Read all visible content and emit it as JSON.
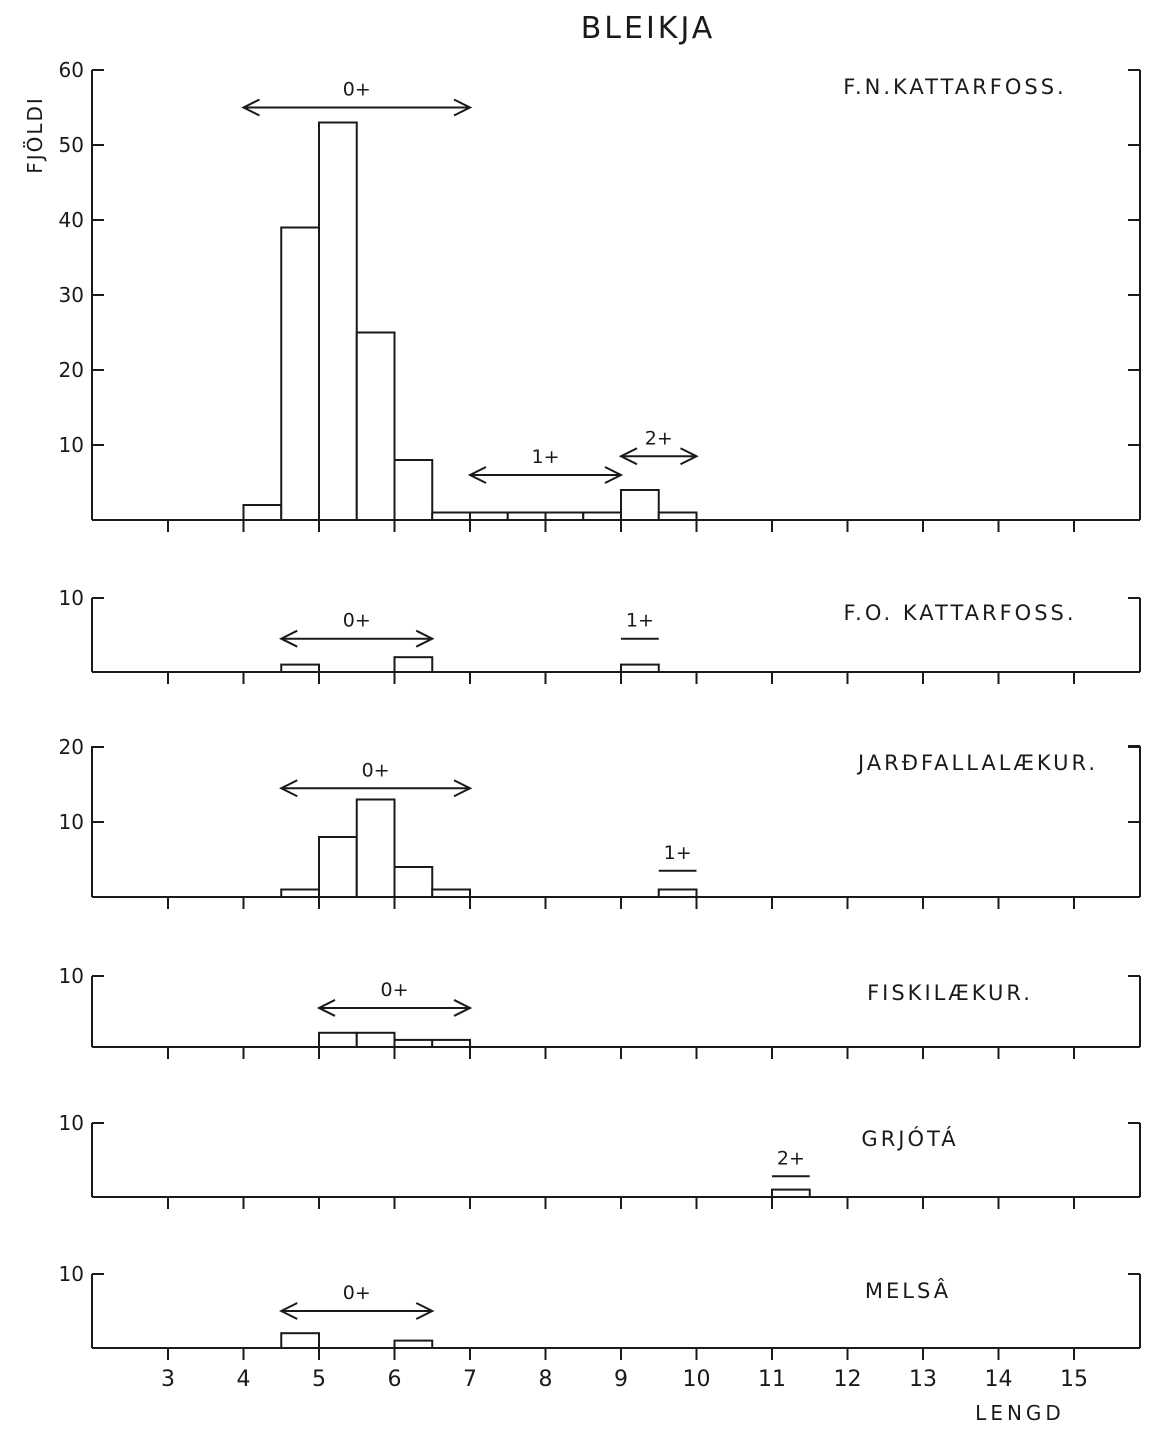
{
  "chart_data": {
    "type": "bar",
    "title": "BLEIKJA",
    "ylabel": "FJÖLDI",
    "xlabel": "LENGD",
    "x_ticks": [
      "3",
      "4",
      "5",
      "6",
      "7",
      "8",
      "9",
      "10",
      "11",
      "12",
      "13",
      "14",
      "15"
    ],
    "xlim": [
      2,
      16
    ],
    "bin_width": 0.5,
    "panels": [
      {
        "name": "F.N.KATTARFOSS.",
        "ylim": [
          0,
          60
        ],
        "y_ticks": [
          "60",
          "50",
          "40",
          "30",
          "20",
          "10"
        ],
        "y_tick_values": [
          60,
          50,
          40,
          30,
          20,
          10
        ],
        "bins": [
          {
            "x": 4.0,
            "value": 2
          },
          {
            "x": 4.5,
            "value": 39
          },
          {
            "x": 5.0,
            "value": 53
          },
          {
            "x": 5.5,
            "value": 25
          },
          {
            "x": 6.0,
            "value": 8
          },
          {
            "x": 6.5,
            "value": 1
          },
          {
            "x": 7.0,
            "value": 1
          },
          {
            "x": 7.5,
            "value": 1
          },
          {
            "x": 8.0,
            "value": 1
          },
          {
            "x": 8.5,
            "value": 1
          },
          {
            "x": 9.0,
            "value": 4
          },
          {
            "x": 9.5,
            "value": 1
          }
        ],
        "annotations": [
          {
            "label": "0+",
            "from": 4.0,
            "to": 7.0,
            "y": 55,
            "arrows": true
          },
          {
            "label": "1+",
            "from": 7.0,
            "to": 9.0,
            "y": 6,
            "arrows": true
          },
          {
            "label": "2+",
            "from": 9.0,
            "to": 10.0,
            "y": 8.5,
            "arrows": true
          }
        ]
      },
      {
        "name": "F.O. KATTARFOSS.",
        "ylim": [
          0,
          10
        ],
        "y_ticks": [
          "10"
        ],
        "y_tick_values": [
          10
        ],
        "bins": [
          {
            "x": 4.5,
            "value": 1
          },
          {
            "x": 6.0,
            "value": 2
          },
          {
            "x": 9.0,
            "value": 1
          }
        ],
        "annotations": [
          {
            "label": "0+",
            "from": 4.5,
            "to": 6.5,
            "y": 4.5,
            "arrows": true
          },
          {
            "label": "1+",
            "from": 9.0,
            "to": 9.5,
            "y": 4.5,
            "arrows": false
          }
        ]
      },
      {
        "name": "JARÐFALLALÆKUR.",
        "ylim": [
          0,
          20
        ],
        "y_ticks": [
          "20",
          "10"
        ],
        "y_tick_values": [
          20,
          10
        ],
        "bins": [
          {
            "x": 4.5,
            "value": 1
          },
          {
            "x": 5.0,
            "value": 8
          },
          {
            "x": 5.5,
            "value": 13
          },
          {
            "x": 6.0,
            "value": 4
          },
          {
            "x": 6.5,
            "value": 1
          },
          {
            "x": 9.5,
            "value": 1
          }
        ],
        "annotations": [
          {
            "label": "0+",
            "from": 4.5,
            "to": 7.0,
            "y": 14.5,
            "arrows": true
          },
          {
            "label": "1+",
            "from": 9.5,
            "to": 10.0,
            "y": 3.5,
            "arrows": false
          }
        ]
      },
      {
        "name": "FISKILÆKUR.",
        "ylim": [
          0,
          10
        ],
        "y_ticks": [
          "10"
        ],
        "y_tick_values": [
          10
        ],
        "bins": [
          {
            "x": 5.0,
            "value": 2
          },
          {
            "x": 5.5,
            "value": 2
          },
          {
            "x": 6.0,
            "value": 1
          },
          {
            "x": 6.5,
            "value": 1
          }
        ],
        "annotations": [
          {
            "label": "0+",
            "from": 5.0,
            "to": 7.0,
            "y": 5.5,
            "arrows": true
          }
        ]
      },
      {
        "name": "GRJÓTÁ",
        "ylim": [
          0,
          10
        ],
        "y_ticks": [
          "10"
        ],
        "y_tick_values": [
          10
        ],
        "bins": [
          {
            "x": 11.0,
            "value": 1
          }
        ],
        "annotations": [
          {
            "label": "2+",
            "from": 11.0,
            "to": 11.5,
            "y": 2.8,
            "arrows": false
          }
        ]
      },
      {
        "name": "MELSÂ",
        "ylim": [
          0,
          10
        ],
        "y_ticks": [
          "10"
        ],
        "y_tick_values": [
          10
        ],
        "bins": [
          {
            "x": 4.5,
            "value": 2
          },
          {
            "x": 6.0,
            "value": 1
          }
        ],
        "annotations": [
          {
            "label": "0+",
            "from": 4.5,
            "to": 6.5,
            "y": 5,
            "arrows": true
          }
        ]
      }
    ]
  }
}
